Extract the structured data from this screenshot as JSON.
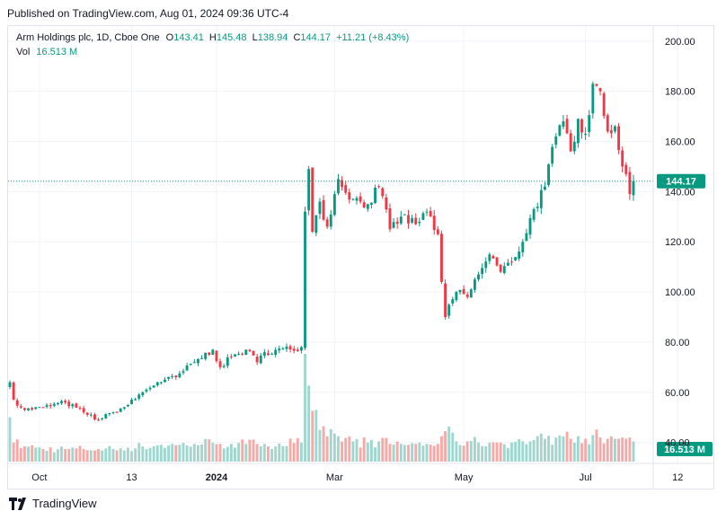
{
  "header": {
    "published": "Published on TradingView.com, Aug 01, 2024 09:36 UTC-4"
  },
  "legend": {
    "symbol": "Arm Holdings plc, 1D, Cboe One",
    "o_label": "O",
    "o_value": "143.41",
    "h_label": "H",
    "h_value": "145.48",
    "l_label": "L",
    "l_value": "138.94",
    "c_label": "C",
    "c_value": "144.17",
    "change": "+11.21 (+8.43%)",
    "vol_label": "Vol",
    "vol_value": "16.513 M"
  },
  "footer": {
    "brand": "TradingView"
  },
  "colors": {
    "up": "#089981",
    "down": "#f23645",
    "up_vol": "#9fd7ce",
    "down_vol": "#f7a9a7"
  },
  "chart_data": {
    "type": "candlestick",
    "price_axis": {
      "ticks": [
        200,
        180,
        160,
        140,
        120,
        100,
        80,
        60,
        40
      ],
      "tick_labels": [
        "200.00",
        "180.00",
        "160.00",
        "140.00",
        "120.00",
        "100.00",
        "80.00",
        "60.00",
        "40.00"
      ],
      "range": [
        32,
        206
      ]
    },
    "time_axis": {
      "labels": [
        "Oct",
        "13",
        "2024",
        "Mar",
        "May",
        "Jul",
        "12"
      ],
      "bold": [
        false,
        false,
        true,
        false,
        false,
        false,
        false
      ],
      "positions": [
        8,
        33,
        56,
        88,
        123,
        156,
        181
      ]
    },
    "last_price": {
      "value": 144.17,
      "label": "144.17"
    },
    "last_volume": {
      "label": "16.513 M"
    },
    "anchors": [
      [
        0,
        64,
        3.5
      ],
      [
        1,
        57,
        1.5
      ],
      [
        4,
        53,
        1.2
      ],
      [
        9,
        54,
        1.0
      ],
      [
        15,
        56,
        1.0
      ],
      [
        20,
        52,
        1.0
      ],
      [
        24,
        49,
        1.0
      ],
      [
        28,
        52,
        1.0
      ],
      [
        32,
        55,
        1.1
      ],
      [
        36,
        60,
        1.2
      ],
      [
        40,
        64,
        1.3
      ],
      [
        45,
        66,
        1.3
      ],
      [
        50,
        72,
        1.4
      ],
      [
        55,
        77,
        1.5
      ],
      [
        57,
        70,
        1.4
      ],
      [
        60,
        74,
        1.4
      ],
      [
        64,
        77,
        1.4
      ],
      [
        67,
        72,
        1.4
      ],
      [
        69,
        76,
        1.4
      ],
      [
        79,
        78,
        1.5
      ],
      [
        80,
        132,
        8.5
      ],
      [
        81,
        149,
        6.0
      ],
      [
        82,
        124,
        4.0
      ],
      [
        84,
        136,
        2.5
      ],
      [
        86,
        126,
        2.0
      ],
      [
        89,
        145,
        2.0
      ],
      [
        93,
        137,
        1.6
      ],
      [
        97,
        135,
        1.5
      ],
      [
        100,
        142,
        1.6
      ],
      [
        103,
        125,
        1.4
      ],
      [
        106,
        130,
        1.4
      ],
      [
        110,
        127,
        1.4
      ],
      [
        113,
        132,
        1.4
      ],
      [
        116,
        123,
        1.4
      ],
      [
        117,
        104,
        2.0
      ],
      [
        118,
        90,
        2.4
      ],
      [
        121,
        100,
        1.6
      ],
      [
        124,
        98,
        1.6
      ],
      [
        127,
        107,
        1.5
      ],
      [
        130,
        115,
        1.5
      ],
      [
        133,
        108,
        1.5
      ],
      [
        136,
        112,
        1.5
      ],
      [
        139,
        120,
        1.6
      ],
      [
        142,
        133,
        1.7
      ],
      [
        145,
        142,
        1.8
      ],
      [
        148,
        162,
        1.9
      ],
      [
        150,
        168,
        2.0
      ],
      [
        152,
        156,
        1.8
      ],
      [
        154,
        169,
        2.0
      ],
      [
        156,
        163,
        1.8
      ],
      [
        158,
        183,
        2.1
      ],
      [
        160,
        180,
        1.9
      ],
      [
        162,
        164,
        1.8
      ],
      [
        164,
        166,
        1.8
      ],
      [
        166,
        150,
        1.9
      ],
      [
        168,
        139,
        1.9
      ],
      [
        169,
        144,
        1.6
      ]
    ]
  }
}
